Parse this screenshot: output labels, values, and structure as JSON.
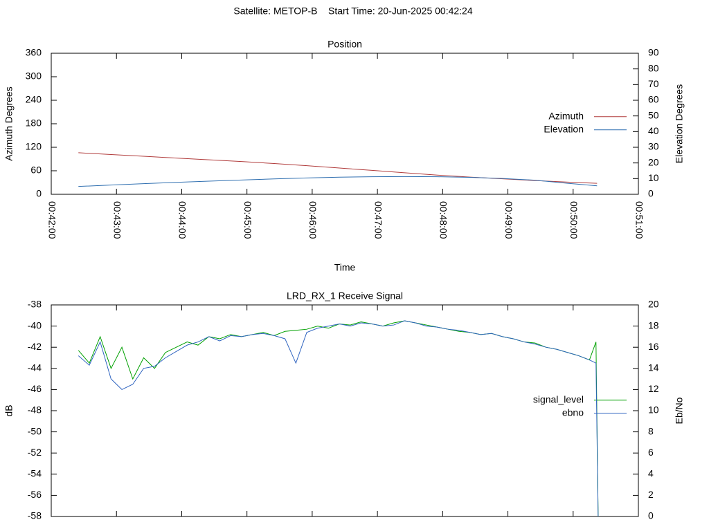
{
  "title": "Satellite: METOP-B    Start Time: 20-Jun-2025 00:42:24",
  "chart_data": [
    {
      "type": "line",
      "title": "Position",
      "xlabel": "Time",
      "ylabel": "Azimuth Degrees",
      "y2label": "Elevation Degrees",
      "x": [
        2545,
        2575,
        2605,
        2635,
        2665,
        2695,
        2725,
        2755,
        2785,
        2815,
        2845,
        2875,
        2905,
        2935,
        2965,
        2995,
        3022
      ],
      "series": [
        {
          "name": "Azimuth",
          "color": "#b03a3a",
          "values": [
            106,
            101.5,
            97,
            92.5,
            88,
            83.5,
            78.5,
            73,
            67,
            61,
            55,
            49,
            44,
            39.5,
            35,
            31,
            28
          ]
        },
        {
          "name": "Elevation",
          "color": "#2f6fb0",
          "axis": "y2",
          "values": [
            5.0,
            5.9,
            6.8,
            7.6,
            8.4,
            9.1,
            9.8,
            10.4,
            10.9,
            11.2,
            11.3,
            11.2,
            10.8,
            10.1,
            9.0,
            7.0,
            5.4
          ]
        }
      ],
      "xlim": [
        2520,
        3060
      ],
      "xticks": [
        {
          "value": 2520,
          "label": "00:42:00"
        },
        {
          "value": 2580,
          "label": "00:43:00"
        },
        {
          "value": 2640,
          "label": "00:44:00"
        },
        {
          "value": 2700,
          "label": "00:45:00"
        },
        {
          "value": 2760,
          "label": "00:46:00"
        },
        {
          "value": 2820,
          "label": "00:47:00"
        },
        {
          "value": 2880,
          "label": "00:48:00"
        },
        {
          "value": 2940,
          "label": "00:49:00"
        },
        {
          "value": 3000,
          "label": "00:50:00"
        },
        {
          "value": 3060,
          "label": "00:51:00"
        }
      ],
      "ylim": [
        0,
        360
      ],
      "yticks": [
        0,
        60,
        120,
        180,
        240,
        300,
        360
      ],
      "y2lim": [
        0,
        90
      ],
      "y2ticks": [
        0,
        10,
        20,
        30,
        40,
        50,
        60,
        70,
        80,
        90
      ],
      "legend": "right"
    },
    {
      "type": "line",
      "title": "LRD_RX_1 Receive Signal",
      "ylabel": "dB",
      "y2label": "Eb/No",
      "x": [
        2545,
        2555,
        2565,
        2575,
        2585,
        2595,
        2605,
        2615,
        2625,
        2635,
        2645,
        2655,
        2665,
        2675,
        2685,
        2695,
        2705,
        2715,
        2725,
        2735,
        2745,
        2755,
        2765,
        2775,
        2785,
        2795,
        2805,
        2815,
        2825,
        2835,
        2845,
        2855,
        2865,
        2875,
        2885,
        2895,
        2905,
        2915,
        2925,
        2935,
        2945,
        2955,
        2965,
        2975,
        2985,
        2995,
        3005,
        3015,
        3021,
        3023
      ],
      "series": [
        {
          "name": "signal_level",
          "color": "#00a000",
          "values": [
            -42.3,
            -43.5,
            -41.0,
            -44.0,
            -42.0,
            -45.0,
            -43.0,
            -44.0,
            -42.5,
            -42.0,
            -41.5,
            -41.8,
            -41.0,
            -41.2,
            -40.8,
            -41.0,
            -40.8,
            -40.6,
            -40.9,
            -40.5,
            -40.4,
            -40.3,
            -40.0,
            -40.2,
            -39.8,
            -39.9,
            -39.6,
            -39.8,
            -40.0,
            -39.7,
            -39.5,
            -39.7,
            -39.9,
            -40.1,
            -40.3,
            -40.5,
            -40.6,
            -40.8,
            -40.7,
            -41.0,
            -41.2,
            -41.5,
            -41.6,
            -42.0,
            -42.2,
            -42.5,
            -42.8,
            -43.2,
            -41.5,
            -58
          ]
        },
        {
          "name": "ebno",
          "color": "#2f64c0",
          "axis": "y2",
          "values": [
            15.2,
            14.3,
            16.5,
            13.0,
            12.0,
            12.5,
            14.0,
            14.2,
            15.0,
            15.6,
            16.2,
            16.5,
            17.0,
            16.6,
            17.1,
            17.0,
            17.2,
            17.3,
            17.1,
            16.8,
            14.5,
            17.4,
            17.8,
            18.0,
            18.2,
            18.0,
            18.3,
            18.2,
            18.0,
            18.1,
            18.5,
            18.3,
            18.0,
            17.9,
            17.7,
            17.6,
            17.4,
            17.2,
            17.3,
            17.0,
            16.8,
            16.5,
            16.3,
            16.0,
            15.8,
            15.5,
            15.2,
            14.8,
            14.5,
            0
          ]
        }
      ],
      "xlim": [
        2520,
        3060
      ],
      "xticks": [
        2520,
        2580,
        2640,
        2700,
        2760,
        2820,
        2880,
        2940,
        3000,
        3060
      ],
      "ylim": [
        -58,
        -38
      ],
      "yticks": [
        -58,
        -56,
        -54,
        -52,
        -50,
        -48,
        -46,
        -44,
        -42,
        -40,
        -38
      ],
      "y2lim": [
        0,
        20
      ],
      "y2ticks": [
        0,
        2,
        4,
        6,
        8,
        10,
        12,
        14,
        16,
        18,
        20
      ],
      "legend": "right"
    }
  ]
}
